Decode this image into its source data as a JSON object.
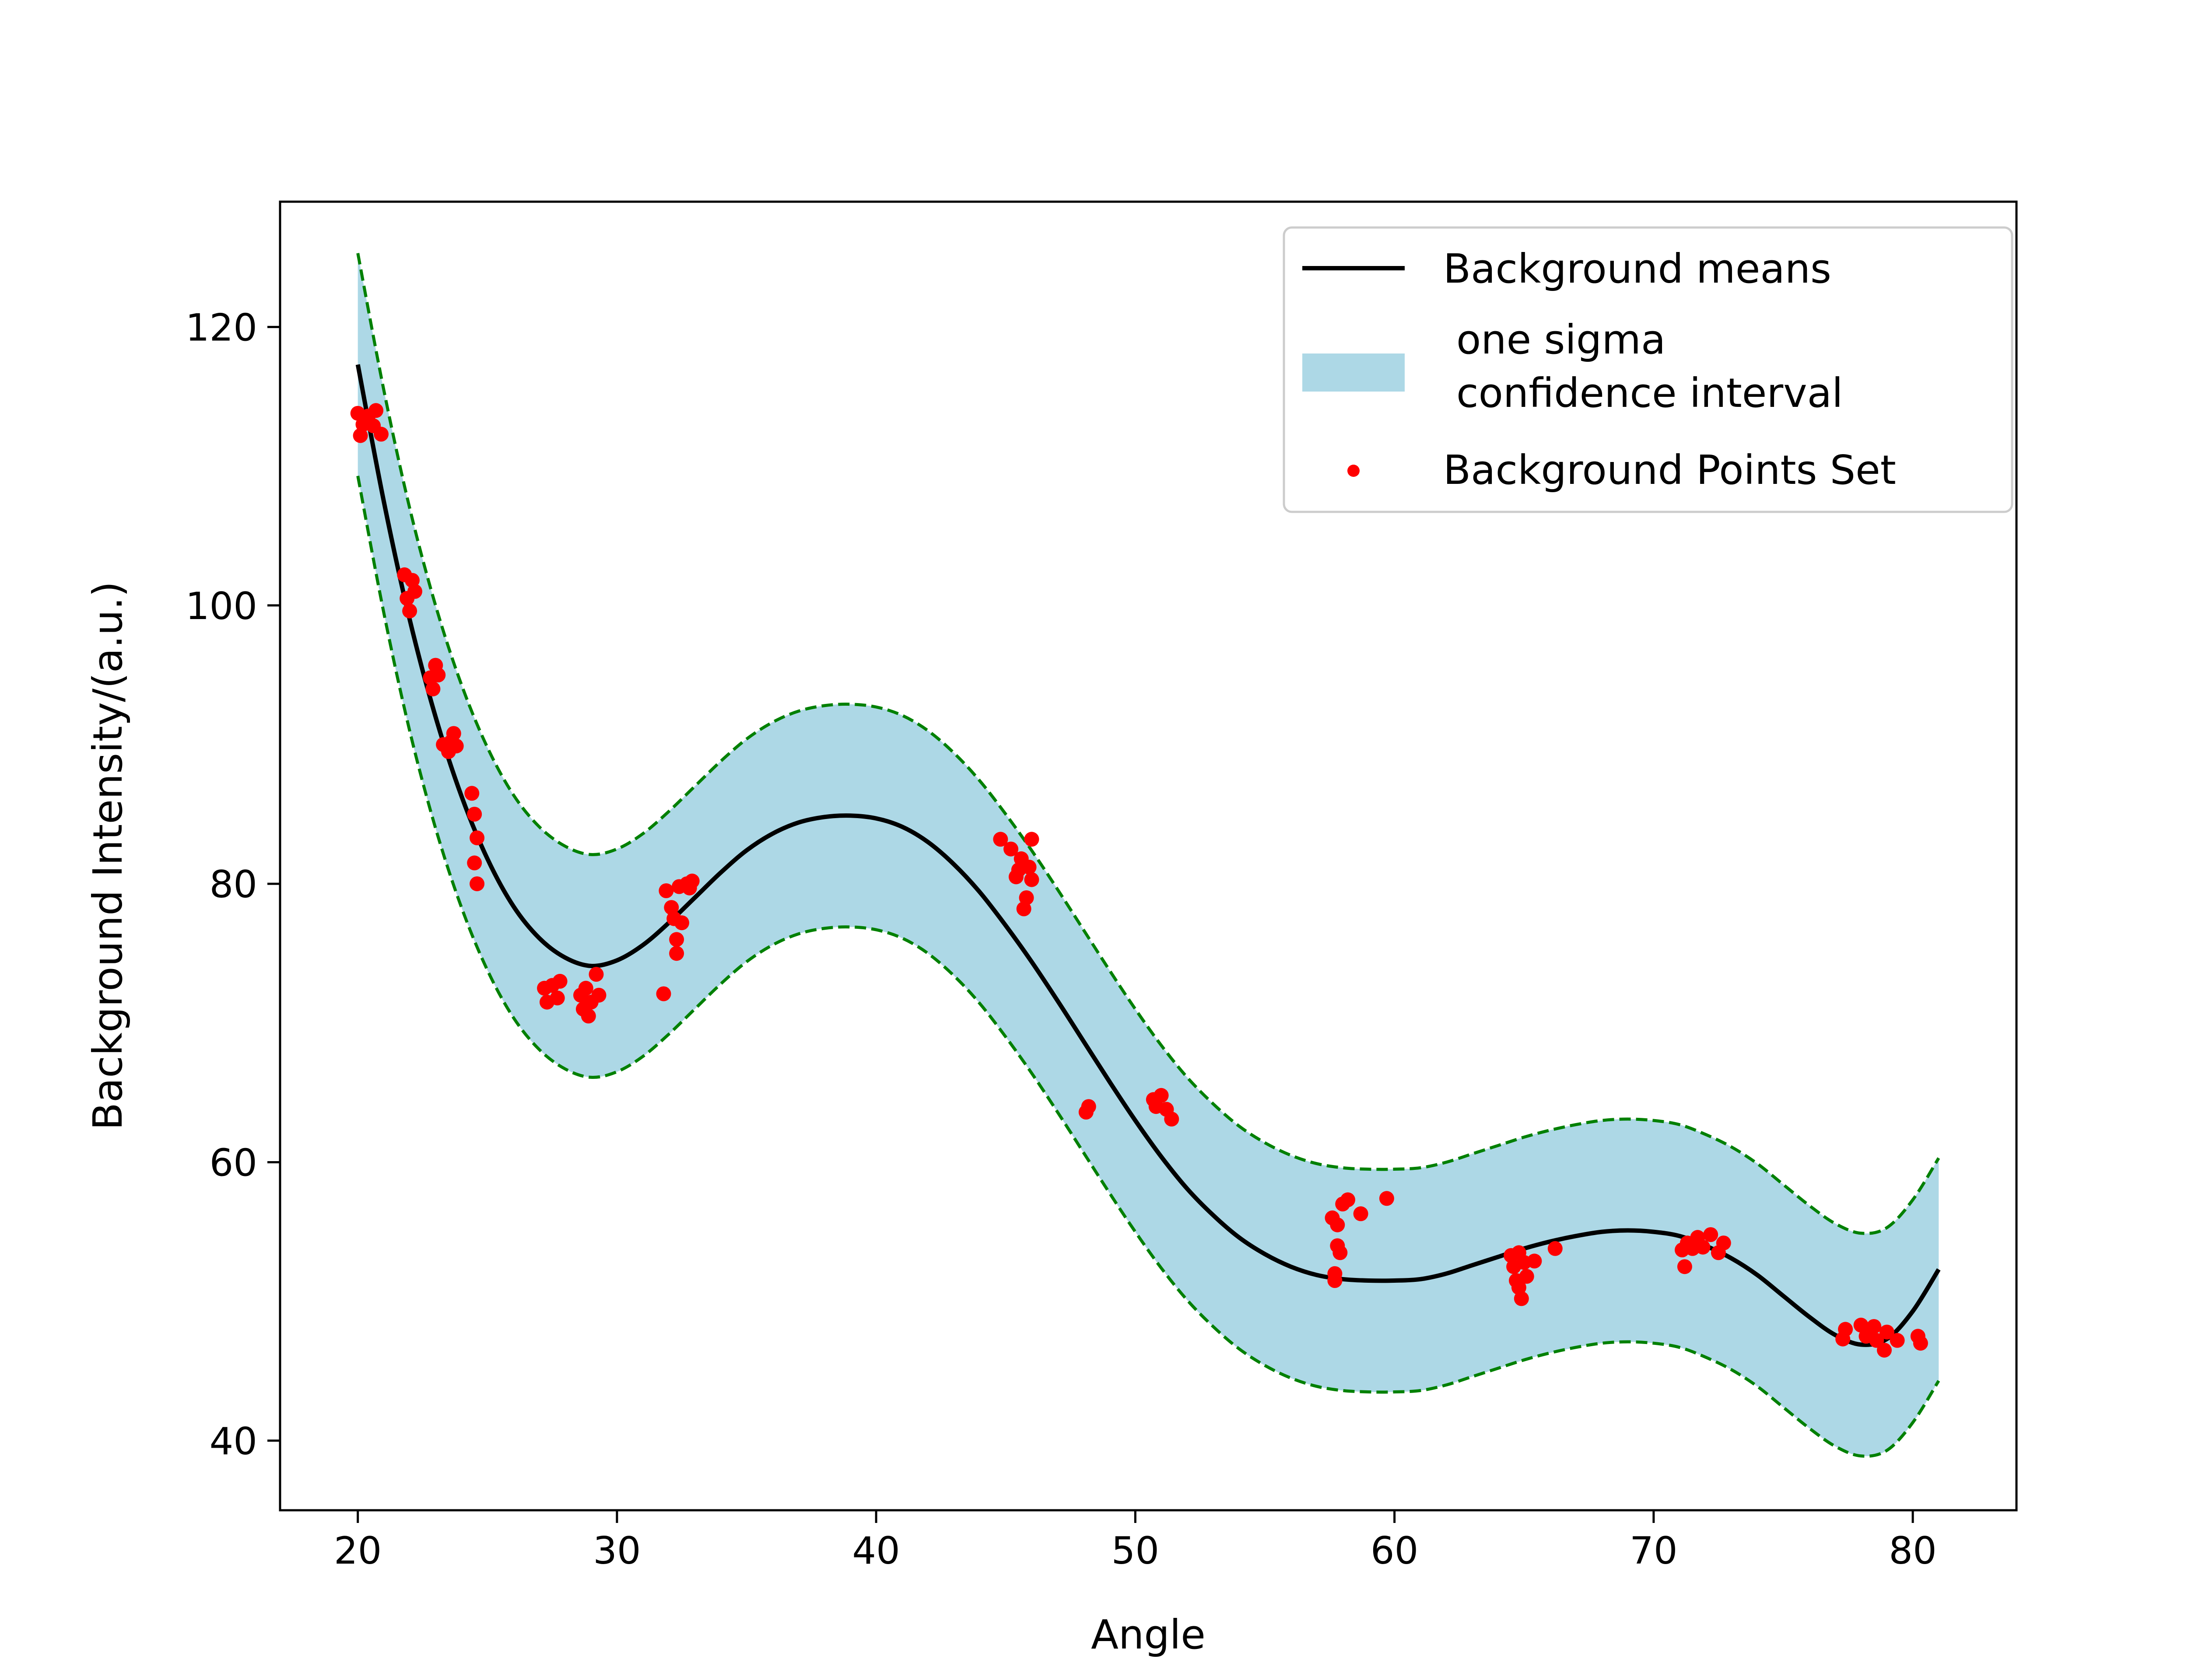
{
  "chart_data": {
    "type": "line",
    "title": "",
    "xlabel": "Angle",
    "ylabel": "Background Intensity/(a.u.)",
    "xlim": [
      17,
      84
    ],
    "ylim": [
      35,
      129
    ],
    "xticks": [
      20,
      30,
      40,
      50,
      60,
      70,
      80
    ],
    "yticks": [
      40,
      60,
      80,
      100,
      120
    ],
    "grid": false,
    "legend_position": "top-right",
    "legend": [
      {
        "label": "Background means",
        "kind": "line"
      },
      {
        "label": "one sigma\nconfidence interval",
        "kind": "patch"
      },
      {
        "label": "Background Points Set",
        "kind": "marker"
      }
    ],
    "colors": {
      "mean_line": "#000000",
      "band_fill": "#add8e6",
      "band_edge": "#008000",
      "points": "#ff0000"
    },
    "series": [
      {
        "name": "Background means",
        "kind": "line",
        "x": [
          20,
          21,
          22,
          23,
          24,
          25,
          26,
          27,
          28,
          29,
          30,
          31,
          32,
          33,
          34,
          35,
          36,
          37,
          38,
          39,
          40,
          41,
          42,
          43,
          44,
          45,
          46,
          47,
          48,
          49,
          50,
          51,
          52,
          53,
          54,
          55,
          56,
          57,
          58,
          59,
          60,
          61,
          62,
          63,
          64,
          65,
          66,
          67,
          68,
          69,
          70,
          71,
          72,
          73,
          74,
          75,
          76,
          77,
          78,
          79,
          80,
          81
        ],
        "y": [
          117.3,
          107.5,
          99.0,
          92.0,
          86.3,
          81.8,
          78.4,
          76.1,
          74.7,
          74.1,
          74.5,
          75.6,
          77.2,
          79.0,
          80.8,
          82.4,
          83.6,
          84.4,
          84.8,
          84.9,
          84.7,
          84.1,
          83.0,
          81.4,
          79.4,
          77.0,
          74.4,
          71.6,
          68.7,
          65.8,
          63.0,
          60.4,
          58.1,
          56.2,
          54.6,
          53.4,
          52.5,
          51.9,
          51.6,
          51.5,
          51.5,
          51.6,
          52.0,
          52.6,
          53.2,
          53.8,
          54.3,
          54.7,
          55.0,
          55.1,
          55.0,
          54.7,
          54.0,
          53.1,
          51.9,
          50.4,
          48.9,
          47.6,
          46.9,
          47.3,
          49.3,
          52.3
        ]
      },
      {
        "name": "one sigma\nconfidence interval",
        "kind": "band",
        "x": [
          20,
          21,
          22,
          23,
          24,
          25,
          26,
          27,
          28,
          29,
          30,
          31,
          32,
          33,
          34,
          35,
          36,
          37,
          38,
          39,
          40,
          41,
          42,
          43,
          44,
          45,
          46,
          47,
          48,
          49,
          50,
          51,
          52,
          53,
          54,
          55,
          56,
          57,
          58,
          59,
          60,
          61,
          62,
          63,
          64,
          65,
          66,
          67,
          68,
          69,
          70,
          71,
          72,
          73,
          74,
          75,
          76,
          77,
          78,
          79,
          80,
          81
        ],
        "lower": [
          109.3,
          99.5,
          91.0,
          84.0,
          78.3,
          73.8,
          70.4,
          68.1,
          66.7,
          66.1,
          66.5,
          67.6,
          69.2,
          71.0,
          72.8,
          74.4,
          75.6,
          76.4,
          76.8,
          76.9,
          76.7,
          76.1,
          75.0,
          73.4,
          71.4,
          69.0,
          66.4,
          63.6,
          60.7,
          57.8,
          55.0,
          52.4,
          50.1,
          48.2,
          46.6,
          45.4,
          44.5,
          43.9,
          43.6,
          43.5,
          43.5,
          43.6,
          44.0,
          44.6,
          45.2,
          45.8,
          46.3,
          46.7,
          47.0,
          47.1,
          47.0,
          46.7,
          46.0,
          45.1,
          43.9,
          42.4,
          40.9,
          39.6,
          38.9,
          39.3,
          41.3,
          44.3
        ],
        "upper": [
          125.3,
          115.5,
          107.0,
          100.0,
          94.3,
          89.8,
          86.4,
          84.1,
          82.7,
          82.1,
          82.5,
          83.6,
          85.2,
          87.0,
          88.8,
          90.4,
          91.6,
          92.4,
          92.8,
          92.9,
          92.7,
          92.1,
          91.0,
          89.4,
          87.4,
          85.0,
          82.4,
          79.6,
          76.7,
          73.8,
          71.0,
          68.4,
          66.1,
          64.2,
          62.6,
          61.4,
          60.5,
          59.9,
          59.6,
          59.5,
          59.5,
          59.6,
          60.0,
          60.6,
          61.2,
          61.8,
          62.3,
          62.7,
          63.0,
          63.1,
          63.0,
          62.7,
          62.0,
          61.1,
          59.9,
          58.4,
          56.9,
          55.6,
          54.9,
          55.3,
          57.3,
          60.3
        ]
      },
      {
        "name": "Background Points Set",
        "kind": "scatter",
        "points": [
          [
            20.0,
            113.8
          ],
          [
            20.1,
            112.2
          ],
          [
            20.2,
            113.0
          ],
          [
            20.4,
            113.6
          ],
          [
            20.6,
            112.9
          ],
          [
            20.7,
            114.0
          ],
          [
            20.9,
            112.3
          ],
          [
            21.8,
            102.2
          ],
          [
            21.9,
            100.5
          ],
          [
            22.0,
            99.6
          ],
          [
            22.1,
            101.8
          ],
          [
            22.2,
            101.0
          ],
          [
            22.8,
            94.8
          ],
          [
            22.9,
            94.0
          ],
          [
            23.0,
            95.7
          ],
          [
            23.1,
            95.0
          ],
          [
            23.3,
            90.0
          ],
          [
            23.5,
            89.5
          ],
          [
            23.6,
            90.2
          ],
          [
            23.7,
            90.8
          ],
          [
            23.8,
            89.9
          ],
          [
            24.4,
            86.5
          ],
          [
            24.5,
            85.0
          ],
          [
            24.5,
            81.5
          ],
          [
            24.6,
            83.3
          ],
          [
            24.6,
            80.0
          ],
          [
            27.2,
            72.5
          ],
          [
            27.3,
            71.5
          ],
          [
            27.5,
            72.7
          ],
          [
            27.7,
            71.8
          ],
          [
            27.8,
            73.0
          ],
          [
            28.6,
            72.0
          ],
          [
            28.7,
            71.0
          ],
          [
            28.8,
            72.5
          ],
          [
            28.9,
            70.5
          ],
          [
            29.0,
            71.5
          ],
          [
            29.2,
            73.5
          ],
          [
            29.3,
            72.0
          ],
          [
            31.8,
            72.1
          ],
          [
            31.9,
            79.5
          ],
          [
            32.1,
            78.3
          ],
          [
            32.2,
            77.5
          ],
          [
            32.3,
            75.0
          ],
          [
            32.3,
            76.0
          ],
          [
            32.4,
            79.8
          ],
          [
            32.5,
            77.2
          ],
          [
            32.7,
            80.0
          ],
          [
            32.8,
            79.7
          ],
          [
            32.9,
            80.2
          ],
          [
            44.8,
            83.2
          ],
          [
            45.2,
            82.5
          ],
          [
            45.4,
            80.5
          ],
          [
            45.5,
            81.0
          ],
          [
            45.6,
            81.8
          ],
          [
            45.7,
            78.2
          ],
          [
            45.8,
            79.0
          ],
          [
            45.9,
            81.2
          ],
          [
            46.0,
            80.3
          ],
          [
            46.0,
            83.2
          ],
          [
            48.1,
            63.6
          ],
          [
            48.2,
            64.0
          ],
          [
            50.7,
            64.5
          ],
          [
            50.8,
            64.0
          ],
          [
            51.0,
            64.8
          ],
          [
            51.2,
            63.8
          ],
          [
            51.4,
            63.1
          ],
          [
            57.6,
            56.0
          ],
          [
            57.7,
            51.5
          ],
          [
            57.7,
            52.0
          ],
          [
            57.8,
            54.0
          ],
          [
            57.8,
            55.5
          ],
          [
            57.9,
            53.5
          ],
          [
            58.0,
            57.0
          ],
          [
            58.2,
            57.3
          ],
          [
            58.7,
            56.3
          ],
          [
            59.7,
            57.4
          ],
          [
            64.5,
            53.3
          ],
          [
            64.6,
            52.5
          ],
          [
            64.7,
            51.5
          ],
          [
            64.8,
            53.5
          ],
          [
            64.8,
            51.0
          ],
          [
            64.9,
            50.2
          ],
          [
            65.0,
            52.8
          ],
          [
            65.1,
            51.8
          ],
          [
            65.4,
            52.9
          ],
          [
            66.2,
            53.8
          ],
          [
            71.1,
            53.7
          ],
          [
            71.2,
            52.5
          ],
          [
            71.3,
            54.2
          ],
          [
            71.5,
            53.8
          ],
          [
            71.7,
            54.6
          ],
          [
            71.9,
            53.9
          ],
          [
            72.2,
            54.8
          ],
          [
            72.5,
            53.5
          ],
          [
            72.7,
            54.2
          ],
          [
            77.3,
            47.3
          ],
          [
            77.4,
            48.0
          ],
          [
            78.0,
            48.3
          ],
          [
            78.2,
            47.5
          ],
          [
            78.5,
            48.2
          ],
          [
            78.6,
            47.2
          ],
          [
            78.9,
            46.5
          ],
          [
            79.0,
            47.8
          ],
          [
            79.4,
            47.2
          ],
          [
            80.2,
            47.5
          ],
          [
            80.3,
            47.0
          ]
        ]
      }
    ]
  }
}
